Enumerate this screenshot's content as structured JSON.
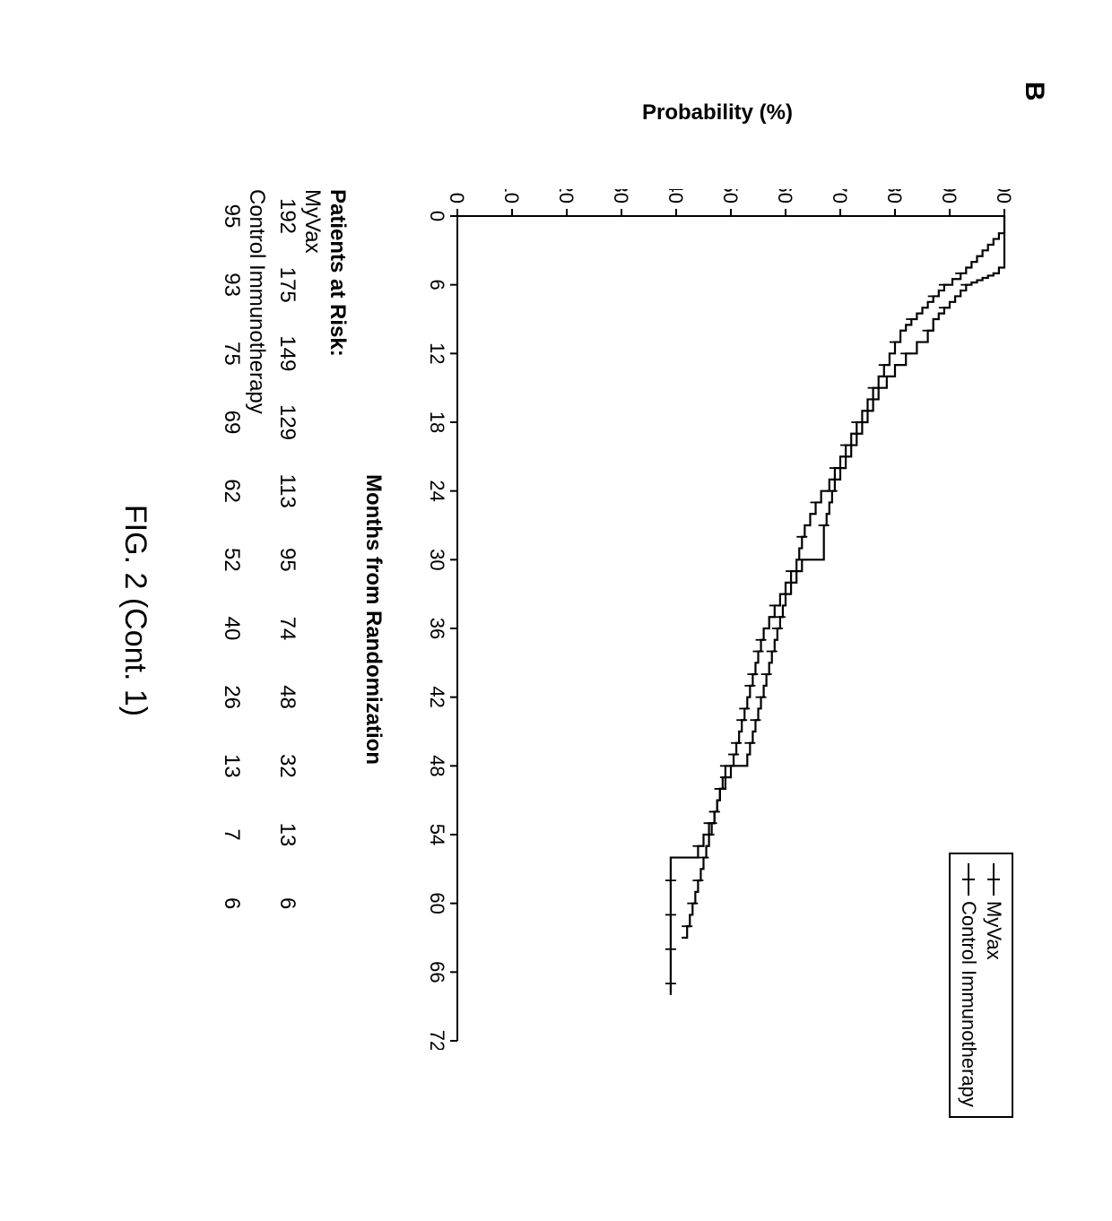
{
  "panel_label": "B",
  "figure_caption": "FIG. 2 (Cont. 1)",
  "legend": {
    "items": [
      "MyVax",
      "Control Immunotherapy"
    ],
    "border_color": "#000000",
    "fontsize": 22
  },
  "chart": {
    "type": "kaplan-meier",
    "background_color": "#ffffff",
    "axis_color": "#000000",
    "line_color": "#000000",
    "line_width": 2.2,
    "tick_color": "#000000",
    "text_color": "#000000",
    "xlabel": "Months from Randomization",
    "ylabel": "Probability (%)",
    "label_fontsize": 24,
    "tick_fontsize": 22,
    "xlim": [
      0,
      72
    ],
    "ylim": [
      0,
      100
    ],
    "xticks": [
      0,
      6,
      12,
      18,
      24,
      30,
      36,
      42,
      48,
      54,
      60,
      66,
      72
    ],
    "yticks": [
      0,
      10,
      20,
      30,
      40,
      50,
      60,
      70,
      80,
      90,
      100
    ],
    "series": [
      {
        "name": "MyVax",
        "step_points": [
          [
            0,
            100
          ],
          [
            1,
            100
          ],
          [
            1.5,
            99
          ],
          [
            2,
            98
          ],
          [
            2.5,
            97
          ],
          [
            3,
            96
          ],
          [
            3.5,
            95
          ],
          [
            4,
            94
          ],
          [
            4.5,
            93
          ],
          [
            5,
            92
          ],
          [
            5.5,
            90.5
          ],
          [
            6,
            89
          ],
          [
            6.5,
            88
          ],
          [
            7,
            87
          ],
          [
            7.5,
            86
          ],
          [
            8,
            85
          ],
          [
            8.5,
            84
          ],
          [
            9,
            83
          ],
          [
            9.5,
            82
          ],
          [
            10,
            81
          ],
          [
            11,
            80
          ],
          [
            12,
            79
          ],
          [
            13,
            78
          ],
          [
            14,
            77
          ],
          [
            15,
            76
          ],
          [
            16,
            75
          ],
          [
            17,
            74
          ],
          [
            18,
            73
          ],
          [
            19,
            72
          ],
          [
            20,
            71
          ],
          [
            21,
            70
          ],
          [
            22,
            69
          ],
          [
            23,
            68
          ],
          [
            24,
            66.5
          ],
          [
            25,
            65.5
          ],
          [
            26,
            64.5
          ],
          [
            27,
            63.5
          ],
          [
            28,
            63
          ],
          [
            29,
            62.5
          ],
          [
            30,
            62
          ],
          [
            31,
            61
          ],
          [
            32,
            60
          ],
          [
            33,
            59
          ],
          [
            34,
            58
          ],
          [
            35,
            57
          ],
          [
            36,
            56
          ],
          [
            37,
            55.5
          ],
          [
            38,
            55
          ],
          [
            39,
            54.5
          ],
          [
            40,
            54
          ],
          [
            41,
            53.5
          ],
          [
            42,
            53
          ],
          [
            43,
            52.5
          ],
          [
            44,
            52
          ],
          [
            45,
            51.5
          ],
          [
            46,
            51
          ],
          [
            47,
            50.5
          ],
          [
            48,
            50
          ],
          [
            49,
            49
          ],
          [
            50,
            48
          ],
          [
            51,
            47.5
          ],
          [
            52,
            47
          ],
          [
            53,
            46.5
          ],
          [
            54,
            46
          ],
          [
            55,
            45.5
          ],
          [
            56,
            45
          ],
          [
            57,
            44.5
          ],
          [
            58,
            44
          ],
          [
            59,
            43.5
          ],
          [
            60,
            43
          ],
          [
            61,
            42.5
          ],
          [
            62,
            42
          ],
          [
            63,
            41
          ]
        ],
        "censor_x": [
          5,
          6,
          7,
          9,
          11,
          13,
          15,
          18,
          20,
          22,
          25,
          28,
          31,
          34,
          37,
          38,
          40,
          41,
          43,
          44,
          46,
          47,
          49,
          50,
          52,
          53,
          54,
          56,
          58,
          60,
          62
        ]
      },
      {
        "name": "Control Immunotherapy",
        "step_points": [
          [
            0,
            100
          ],
          [
            0.5,
            100
          ],
          [
            1,
            100
          ],
          [
            2,
            100
          ],
          [
            3,
            100
          ],
          [
            4,
            100
          ],
          [
            4.5,
            99
          ],
          [
            5,
            98
          ],
          [
            5.2,
            97
          ],
          [
            5.4,
            96
          ],
          [
            5.6,
            95
          ],
          [
            5.8,
            94
          ],
          [
            6,
            93
          ],
          [
            6.5,
            92
          ],
          [
            7,
            91
          ],
          [
            7.5,
            90
          ],
          [
            8,
            89
          ],
          [
            8.5,
            88
          ],
          [
            9,
            87
          ],
          [
            10,
            86
          ],
          [
            11,
            84
          ],
          [
            12,
            82
          ],
          [
            13,
            80
          ],
          [
            14,
            78.5
          ],
          [
            15,
            77
          ],
          [
            16,
            76
          ],
          [
            17,
            75
          ],
          [
            18,
            74
          ],
          [
            19,
            73
          ],
          [
            20,
            72
          ],
          [
            21,
            71
          ],
          [
            22,
            70
          ],
          [
            23,
            69
          ],
          [
            24,
            68.5
          ],
          [
            25,
            68
          ],
          [
            26,
            67.5
          ],
          [
            27,
            67
          ],
          [
            28,
            67
          ],
          [
            29,
            67
          ],
          [
            30,
            63
          ],
          [
            31,
            62
          ],
          [
            32,
            61
          ],
          [
            33,
            60
          ],
          [
            34,
            59.5
          ],
          [
            35,
            59
          ],
          [
            36,
            58.5
          ],
          [
            37,
            58
          ],
          [
            38,
            57.5
          ],
          [
            39,
            57
          ],
          [
            40,
            56.5
          ],
          [
            41,
            56
          ],
          [
            42,
            55.5
          ],
          [
            43,
            55
          ],
          [
            44,
            54.5
          ],
          [
            45,
            54
          ],
          [
            46,
            53.5
          ],
          [
            47,
            53
          ],
          [
            48,
            49
          ],
          [
            49,
            48.5
          ],
          [
            50,
            48
          ],
          [
            51,
            47.5
          ],
          [
            52,
            47
          ],
          [
            53,
            46
          ],
          [
            54,
            45
          ],
          [
            55,
            44
          ],
          [
            56,
            39
          ],
          [
            57,
            39
          ],
          [
            58,
            39
          ],
          [
            59,
            39
          ],
          [
            60,
            39
          ],
          [
            62,
            39
          ],
          [
            64,
            39
          ],
          [
            66,
            39
          ],
          [
            68,
            39
          ]
        ],
        "censor_x": [
          6,
          8,
          10,
          12,
          14,
          17,
          21,
          24,
          27,
          30,
          31,
          33,
          35,
          36,
          38,
          40,
          42,
          44,
          46,
          48,
          50,
          52,
          53,
          55,
          58,
          61,
          64,
          67
        ]
      }
    ]
  },
  "patients_at_risk": {
    "title": "Patients at Risk:",
    "xticks": [
      0,
      6,
      12,
      18,
      24,
      30,
      36,
      42,
      48,
      54,
      60
    ],
    "rows": [
      {
        "label": "MyVax",
        "values": [
          192,
          175,
          149,
          129,
          113,
          95,
          74,
          48,
          32,
          13,
          6
        ]
      },
      {
        "label": "Control Immunotherapy",
        "values": [
          95,
          93,
          75,
          69,
          62,
          52,
          40,
          26,
          13,
          7,
          6
        ]
      }
    ]
  }
}
